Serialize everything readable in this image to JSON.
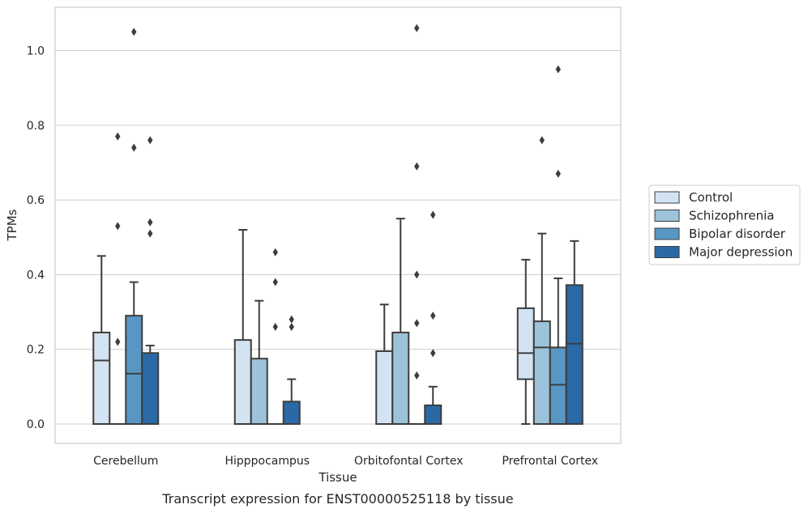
{
  "chart_data": {
    "type": "box",
    "caption": "Transcript expression for ENST00000525118 by tissue",
    "xlabel": "Tissue",
    "ylabel": "TPMs",
    "ylim": [
      -0.05,
      1.12
    ],
    "yticks": [
      0.0,
      0.2,
      0.4,
      0.6,
      0.8,
      1.0
    ],
    "ytick_labels": [
      "0.0",
      "0.2",
      "0.4",
      "0.6",
      "0.8",
      "1.0"
    ],
    "grid": "horizontal",
    "legend_position": "right",
    "categories": [
      "Cerebellum",
      "Hipppocampus",
      "Orbitofontal Cortex",
      "Prefrontal Cortex"
    ],
    "series": [
      {
        "name": "Control",
        "color": "#d4e3f1",
        "boxes": [
          {
            "q1": 0.0,
            "median": 0.17,
            "q3": 0.245,
            "whisker_low": 0.0,
            "whisker_high": 0.45,
            "outliers": []
          },
          {
            "q1": 0.0,
            "median": 0.0,
            "q3": 0.225,
            "whisker_low": 0.0,
            "whisker_high": 0.52,
            "outliers": []
          },
          {
            "q1": 0.0,
            "median": 0.0,
            "q3": 0.195,
            "whisker_low": 0.0,
            "whisker_high": 0.32,
            "outliers": []
          },
          {
            "q1": 0.12,
            "median": 0.19,
            "q3": 0.31,
            "whisker_low": 0.0,
            "whisker_high": 0.44,
            "outliers": []
          }
        ]
      },
      {
        "name": "Schizophrenia",
        "color": "#9dc3db",
        "boxes": [
          {
            "q1": 0.0,
            "median": 0.0,
            "q3": 0.0,
            "whisker_low": 0.0,
            "whisker_high": 0.0,
            "outliers": [
              0.22,
              0.53,
              0.77
            ]
          },
          {
            "q1": 0.0,
            "median": 0.0,
            "q3": 0.175,
            "whisker_low": 0.0,
            "whisker_high": 0.33,
            "outliers": []
          },
          {
            "q1": 0.0,
            "median": 0.0,
            "q3": 0.245,
            "whisker_low": 0.0,
            "whisker_high": 0.55,
            "outliers": []
          },
          {
            "q1": 0.0,
            "median": 0.205,
            "q3": 0.275,
            "whisker_low": 0.0,
            "whisker_high": 0.51,
            "outliers": [
              0.76
            ]
          }
        ]
      },
      {
        "name": "Bipolar disorder",
        "color": "#5897c4",
        "boxes": [
          {
            "q1": 0.0,
            "median": 0.135,
            "q3": 0.29,
            "whisker_low": 0.0,
            "whisker_high": 0.38,
            "outliers": [
              0.74,
              1.05
            ]
          },
          {
            "q1": 0.0,
            "median": 0.0,
            "q3": 0.0,
            "whisker_low": 0.0,
            "whisker_high": 0.0,
            "outliers": [
              0.26,
              0.38,
              0.46
            ]
          },
          {
            "q1": 0.0,
            "median": 0.0,
            "q3": 0.0,
            "whisker_low": 0.0,
            "whisker_high": 0.0,
            "outliers": [
              0.13,
              0.27,
              0.4,
              0.69,
              1.06
            ]
          },
          {
            "q1": 0.0,
            "median": 0.105,
            "q3": 0.205,
            "whisker_low": 0.0,
            "whisker_high": 0.39,
            "outliers": [
              0.67,
              0.95
            ]
          }
        ]
      },
      {
        "name": "Major depression",
        "color": "#2a69a6",
        "boxes": [
          {
            "q1": 0.0,
            "median": 0.0,
            "q3": 0.19,
            "whisker_low": 0.0,
            "whisker_high": 0.21,
            "outliers": [
              0.51,
              0.54,
              0.76
            ]
          },
          {
            "q1": 0.0,
            "median": 0.0,
            "q3": 0.06,
            "whisker_low": 0.0,
            "whisker_high": 0.12,
            "outliers": [
              0.26,
              0.28
            ]
          },
          {
            "q1": 0.0,
            "median": 0.0,
            "q3": 0.05,
            "whisker_low": 0.0,
            "whisker_high": 0.1,
            "outliers": [
              0.19,
              0.29,
              0.56
            ]
          },
          {
            "q1": 0.0,
            "median": 0.215,
            "q3": 0.372,
            "whisker_low": 0.0,
            "whisker_high": 0.49,
            "outliers": []
          }
        ]
      }
    ]
  }
}
